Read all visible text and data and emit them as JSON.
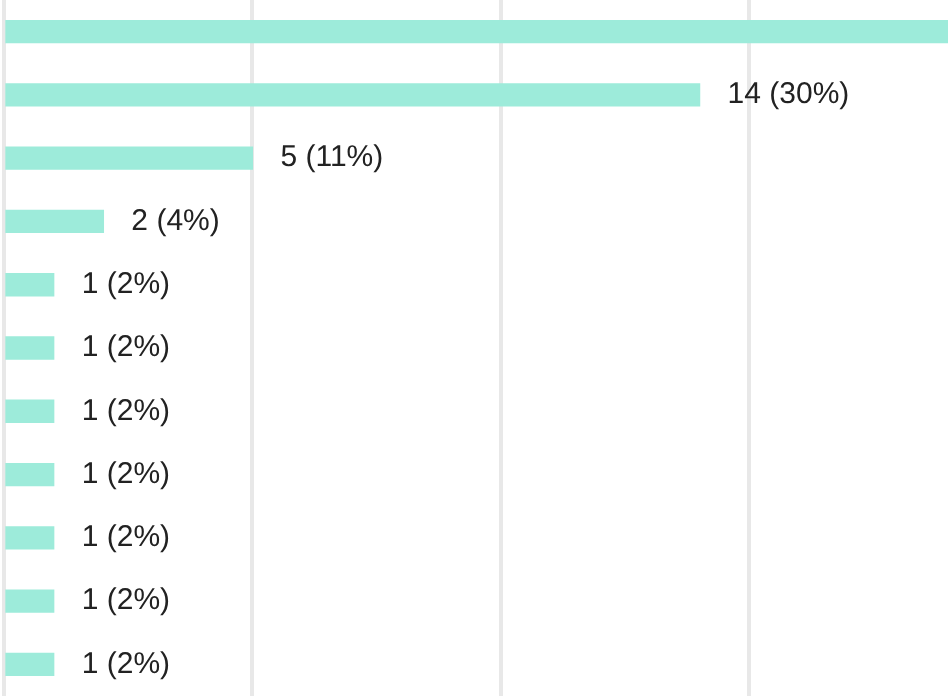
{
  "chart_data": {
    "type": "bar",
    "orientation": "horizontal",
    "categories": [
      null,
      null,
      null,
      null,
      null,
      null,
      null,
      null,
      null,
      null,
      null
    ],
    "values": [
      19,
      14,
      5,
      2,
      1,
      1,
      1,
      1,
      1,
      1,
      1
    ],
    "value_labels": [
      null,
      "14 (30%)",
      "5 (11%)",
      "2 (4%)",
      "1 (2%)",
      "1 (2%)",
      "1 (2%)",
      "1 (2%)",
      "1 (2%)",
      "1 (2%)",
      "1 (2%)"
    ],
    "color": "#9debda",
    "xlim": [
      0,
      19
    ],
    "xticks": [
      {
        "value": 0,
        "label": null
      },
      {
        "value": 5,
        "label": null
      },
      {
        "value": 10,
        "label": null
      },
      {
        "value": 15,
        "label": null
      }
    ],
    "grid": "x",
    "tick_labels": false
  }
}
